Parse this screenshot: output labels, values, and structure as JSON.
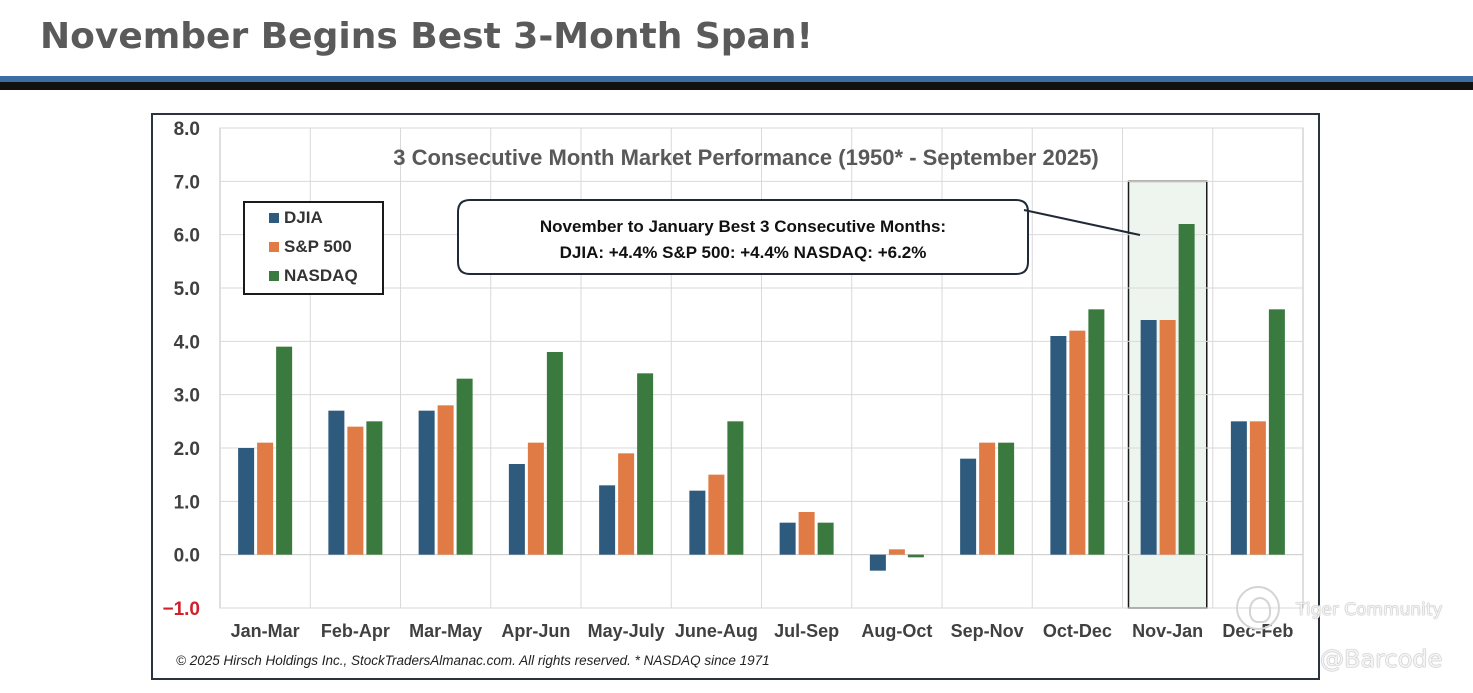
{
  "page": {
    "title": "November Begins Best 3-Month Span!",
    "watermark_community": "Tiger Community",
    "watermark_handle": "@Barcode"
  },
  "chart_data": {
    "type": "bar",
    "title": "3 Consecutive Month Market Performance (1950* - September 2025)",
    "categories": [
      "Jan-Mar",
      "Feb-Apr",
      "Mar-May",
      "Apr-Jun",
      "May-July",
      "June-Aug",
      "Jul-Sep",
      "Aug-Oct",
      "Sep-Nov",
      "Oct-Dec",
      "Nov-Jan",
      "Dec-Feb"
    ],
    "series": [
      {
        "name": "DJIA",
        "color": "#2e5a7e",
        "values": [
          2.0,
          2.7,
          2.7,
          1.7,
          1.3,
          1.2,
          0.6,
          -0.3,
          1.8,
          4.1,
          4.4,
          2.5
        ]
      },
      {
        "name": "S&P 500",
        "color": "#e07b45",
        "values": [
          2.1,
          2.4,
          2.8,
          2.1,
          1.9,
          1.5,
          0.8,
          0.1,
          2.1,
          4.2,
          4.4,
          2.5
        ]
      },
      {
        "name": "NASDAQ",
        "color": "#3a7a3e",
        "values": [
          3.9,
          2.5,
          3.3,
          3.8,
          3.4,
          2.5,
          0.6,
          -0.05,
          2.1,
          4.6,
          6.2,
          4.6
        ]
      }
    ],
    "ylim": [
      -1.0,
      8.0
    ],
    "yticks": [
      "8.0",
      "7.0",
      "6.0",
      "5.0",
      "4.0",
      "3.0",
      "2.0",
      "1.0",
      "0.0",
      "−1.0"
    ],
    "ytick_values": [
      8,
      7,
      6,
      5,
      4,
      3,
      2,
      1,
      0,
      -1
    ],
    "grid": true,
    "legend": "top-left",
    "highlight_category": "Nov-Jan",
    "highlight_color": "#eef5ee",
    "negative_tick_color": "#d0202a",
    "callout": {
      "line1": "November to January Best 3 Consecutive Months:",
      "line2": "DJIA: +4.4% S&P 500: +4.4% NASDAQ: +6.2%"
    },
    "footnote": "© 2025 Hirsch Holdings Inc., StockTradersAlmanac.com. All rights reserved. * NASDAQ since 1971"
  }
}
